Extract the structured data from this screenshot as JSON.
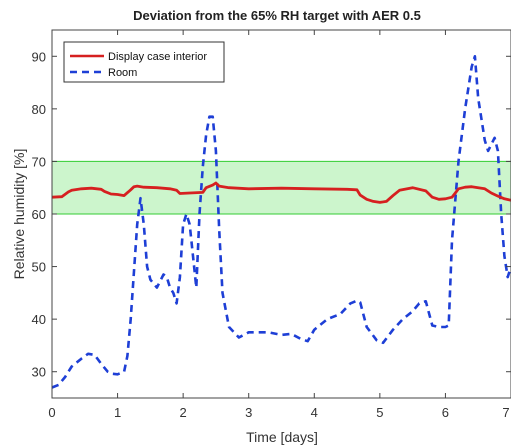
{
  "chart_data": {
    "type": "line",
    "title": "Deviation from the 65% RH target with AER 0.5",
    "xlabel": "Time [days]",
    "ylabel": "Relative humidity [%]",
    "xlim": [
      0,
      7
    ],
    "ylim": [
      25,
      95
    ],
    "xticks": [
      0,
      1,
      2,
      3,
      4,
      5,
      6,
      7
    ],
    "yticks": [
      30,
      40,
      50,
      60,
      70,
      80,
      90
    ],
    "target_band": {
      "lower": 60,
      "upper": 70,
      "fill": "#ccf5cc",
      "stroke": "#33cc33"
    },
    "grid": false,
    "legend_position": "top-left",
    "series": [
      {
        "name": "Display case interior",
        "color": "#d62020",
        "style": "solid",
        "x": [
          0,
          0.15,
          0.25,
          0.3,
          0.45,
          0.6,
          0.75,
          0.8,
          0.9,
          1.0,
          1.1,
          1.2,
          1.25,
          1.3,
          1.4,
          1.6,
          1.8,
          1.9,
          1.95,
          2.1,
          2.3,
          2.35,
          2.45,
          2.5,
          2.55,
          2.7,
          3.0,
          3.5,
          4.0,
          4.5,
          4.65,
          4.7,
          4.8,
          4.9,
          5.0,
          5.1,
          5.2,
          5.3,
          5.5,
          5.7,
          5.8,
          5.9,
          6.0,
          6.1,
          6.15,
          6.2,
          6.3,
          6.4,
          6.6,
          6.7,
          6.8,
          6.9,
          7.0
        ],
        "values": [
          63.2,
          63.3,
          64.2,
          64.5,
          64.8,
          64.9,
          64.7,
          64.3,
          63.8,
          63.7,
          63.5,
          64.6,
          65.2,
          65.3,
          65.1,
          65.0,
          64.8,
          64.5,
          63.9,
          64.0,
          64.1,
          65.0,
          65.5,
          65.9,
          65.3,
          65.0,
          64.8,
          64.9,
          64.8,
          64.7,
          64.6,
          63.6,
          62.8,
          62.4,
          62.2,
          62.4,
          63.5,
          64.5,
          65.0,
          64.4,
          63.2,
          62.8,
          62.9,
          63.2,
          64.0,
          64.8,
          65.1,
          65.2,
          64.8,
          64.0,
          63.4,
          62.9,
          62.6
        ]
      },
      {
        "name": "Room",
        "color": "#1e3fd6",
        "style": "dashed",
        "x": [
          0,
          0.1,
          0.2,
          0.3,
          0.45,
          0.55,
          0.65,
          0.75,
          0.85,
          0.92,
          1.0,
          1.1,
          1.15,
          1.2,
          1.3,
          1.35,
          1.4,
          1.45,
          1.5,
          1.6,
          1.7,
          1.75,
          1.8,
          1.85,
          1.9,
          1.95,
          2.0,
          2.05,
          2.1,
          2.15,
          2.2,
          2.25,
          2.3,
          2.35,
          2.4,
          2.45,
          2.5,
          2.55,
          2.6,
          2.7,
          2.85,
          3.0,
          3.15,
          3.3,
          3.5,
          3.65,
          3.8,
          3.9,
          4.0,
          4.2,
          4.4,
          4.55,
          4.65,
          4.7,
          4.8,
          4.95,
          5.05,
          5.2,
          5.35,
          5.5,
          5.6,
          5.7,
          5.8,
          5.9,
          6.0,
          6.05,
          6.1,
          6.2,
          6.3,
          6.4,
          6.45,
          6.5,
          6.6,
          6.65,
          6.75,
          6.8,
          6.85,
          6.9,
          6.95,
          7.0
        ],
        "values": [
          27,
          27.5,
          29,
          31,
          32.5,
          33.4,
          33.2,
          31.5,
          30,
          29.6,
          29.5,
          30,
          33,
          40,
          58,
          63,
          58,
          50,
          47.5,
          46,
          48.5,
          48,
          46,
          45,
          43,
          48,
          58,
          60,
          58,
          52,
          46,
          60,
          69,
          75,
          78.5,
          78.5,
          72,
          57,
          45,
          38.5,
          36.5,
          37.5,
          37.5,
          37.5,
          37,
          37.2,
          36.2,
          35.8,
          38,
          40,
          41,
          43,
          43.5,
          43.2,
          38.5,
          36,
          35.5,
          38,
          40,
          41.5,
          43,
          43.4,
          38.8,
          38.5,
          38.5,
          38.8,
          55,
          70,
          80,
          88,
          90,
          82,
          74,
          72,
          74.5,
          72,
          60,
          52,
          48,
          50
        ]
      }
    ]
  }
}
